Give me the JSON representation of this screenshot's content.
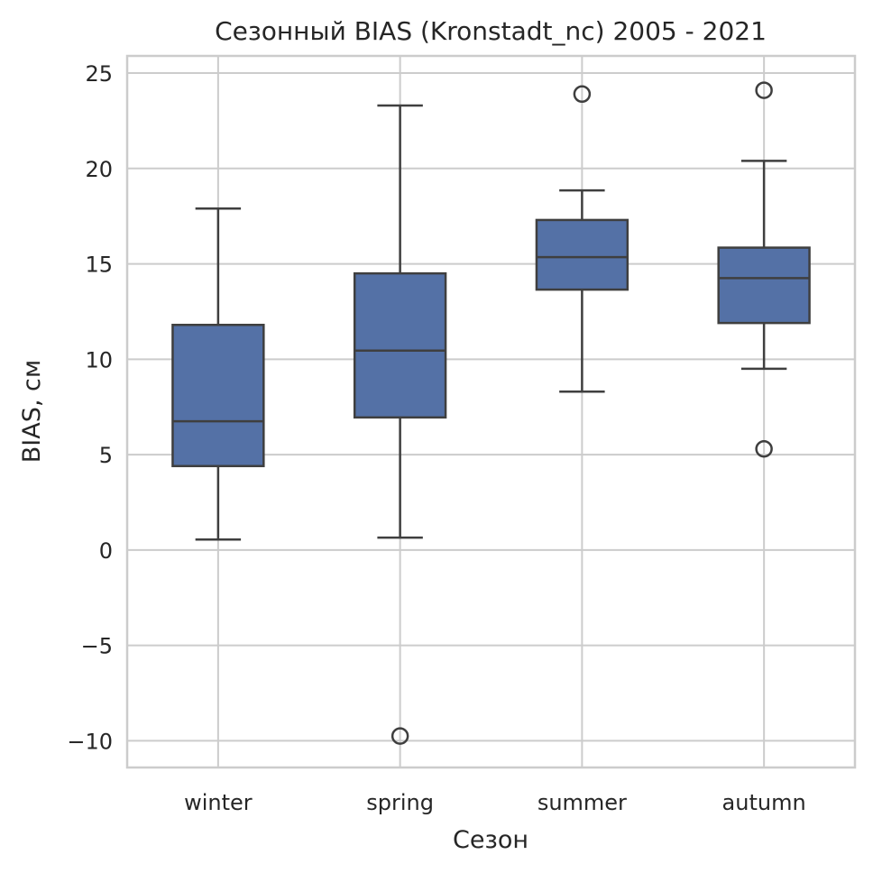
{
  "chart_data": {
    "type": "box",
    "title": "Сезонный BIAS (Kronstadt_nc) 2005 - 2021",
    "xlabel": "Сезон",
    "ylabel": "BIAS, см",
    "ylim": [
      -11.4,
      25.9
    ],
    "yticks": [
      -10,
      -5,
      0,
      5,
      10,
      15,
      20,
      25
    ],
    "ytick_labels": [
      "−10",
      "−5",
      "0",
      "5",
      "10",
      "15",
      "20",
      "25"
    ],
    "grid": true,
    "box_color": "#5471a6",
    "line_color": "#3f3f3f",
    "categories": [
      "winter",
      "spring",
      "summer",
      "autumn"
    ],
    "boxes": [
      {
        "category": "winter",
        "whisker_low": 0.55,
        "q1": 4.4,
        "median": 6.75,
        "q3": 11.8,
        "whisker_high": 17.9,
        "outliers": []
      },
      {
        "category": "spring",
        "whisker_low": 0.65,
        "q1": 6.95,
        "median": 10.45,
        "q3": 14.5,
        "whisker_high": 23.3,
        "outliers": [
          -9.75
        ]
      },
      {
        "category": "summer",
        "whisker_low": 8.3,
        "q1": 13.65,
        "median": 15.35,
        "q3": 17.3,
        "whisker_high": 18.85,
        "outliers": [
          23.9
        ]
      },
      {
        "category": "autumn",
        "whisker_low": 9.5,
        "q1": 11.9,
        "median": 14.25,
        "q3": 15.85,
        "whisker_high": 20.4,
        "outliers": [
          5.3,
          24.1
        ]
      }
    ]
  }
}
